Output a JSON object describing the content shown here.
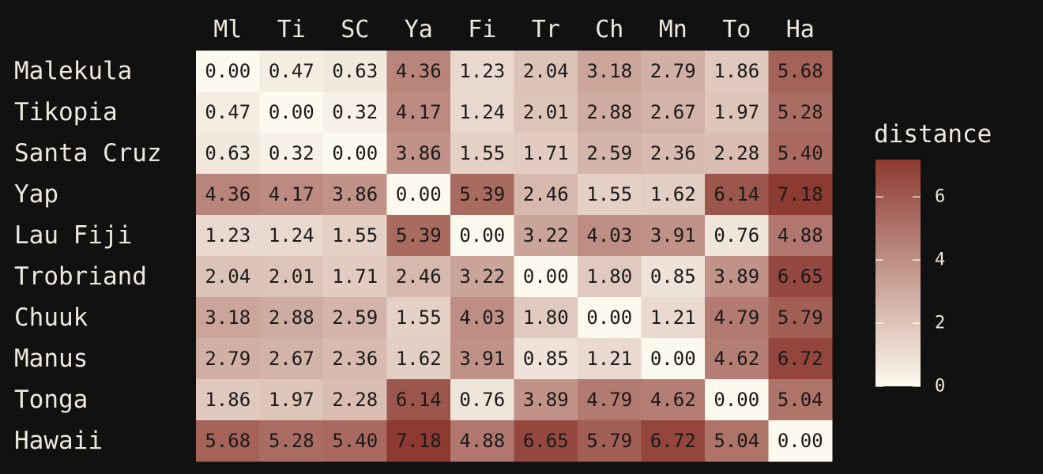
{
  "chart_data": {
    "type": "heatmap",
    "columns": [
      "Ml",
      "Ti",
      "SC",
      "Ya",
      "Fi",
      "Tr",
      "Ch",
      "Mn",
      "To",
      "Ha"
    ],
    "rows": [
      "Malekula",
      "Tikopia",
      "Santa Cruz",
      "Yap",
      "Lau Fiji",
      "Trobriand",
      "Chuuk",
      "Manus",
      "Tonga",
      "Hawaii"
    ],
    "values": [
      [
        0.0,
        0.47,
        0.63,
        4.36,
        1.23,
        2.04,
        3.18,
        2.79,
        1.86,
        5.68
      ],
      [
        0.47,
        0.0,
        0.32,
        4.17,
        1.24,
        2.01,
        2.88,
        2.67,
        1.97,
        5.28
      ],
      [
        0.63,
        0.32,
        0.0,
        3.86,
        1.55,
        1.71,
        2.59,
        2.36,
        2.28,
        5.4
      ],
      [
        4.36,
        4.17,
        3.86,
        0.0,
        5.39,
        2.46,
        1.55,
        1.62,
        6.14,
        7.18
      ],
      [
        1.23,
        1.24,
        1.55,
        5.39,
        0.0,
        3.22,
        4.03,
        3.91,
        0.76,
        4.88
      ],
      [
        2.04,
        2.01,
        1.71,
        2.46,
        3.22,
        0.0,
        1.8,
        0.85,
        3.89,
        6.65
      ],
      [
        3.18,
        2.88,
        2.59,
        1.55,
        4.03,
        1.8,
        0.0,
        1.21,
        4.79,
        5.79
      ],
      [
        2.79,
        2.67,
        2.36,
        1.62,
        3.91,
        0.85,
        1.21,
        0.0,
        4.62,
        6.72
      ],
      [
        1.86,
        1.97,
        2.28,
        6.14,
        0.76,
        3.89,
        4.79,
        4.62,
        0.0,
        5.04
      ],
      [
        5.68,
        5.28,
        5.4,
        7.18,
        4.88,
        6.65,
        5.79,
        6.72,
        5.04,
        0.0
      ]
    ],
    "cell_labels": [
      [
        "0.00",
        "0.47",
        "0.63",
        "4.36",
        "1.23",
        "2.04",
        "3.18",
        "2.79",
        "1.86",
        "5.68"
      ],
      [
        "0.47",
        "0.00",
        "0.32",
        "4.17",
        "1.24",
        "2.01",
        "2.88",
        "2.67",
        "1.97",
        "5.28"
      ],
      [
        "0.63",
        "0.32",
        "0.00",
        "3.86",
        "1.55",
        "1.71",
        "2.59",
        "2.36",
        "2.28",
        "5.40"
      ],
      [
        "4.36",
        "4.17",
        "3.86",
        "0.00",
        "5.39",
        "2.46",
        "1.55",
        "1.62",
        "6.14",
        "7.18"
      ],
      [
        "1.23",
        "1.24",
        "1.55",
        "5.39",
        "0.00",
        "3.22",
        "4.03",
        "3.91",
        "0.76",
        "4.88"
      ],
      [
        "2.04",
        "2.01",
        "1.71",
        "2.46",
        "3.22",
        "0.00",
        "1.80",
        "0.85",
        "3.89",
        "6.65"
      ],
      [
        "3.18",
        "2.88",
        "2.59",
        "1.55",
        "4.03",
        "1.80",
        "0.00",
        "1.21",
        "4.79",
        "5.79"
      ],
      [
        "2.79",
        "2.67",
        "2.36",
        "1.62",
        "3.91",
        "0.85",
        "1.21",
        "0.00",
        "4.62",
        "6.72"
      ],
      [
        "1.86",
        "1.97",
        "2.28",
        "6.14",
        "0.76",
        "3.89",
        "4.79",
        "4.62",
        "0.00",
        "5.04"
      ],
      [
        "5.68",
        "5.28",
        "5.40",
        "7.18",
        "4.88",
        "6.65",
        "5.79",
        "6.72",
        "5.04",
        "0.00"
      ]
    ],
    "legend": {
      "title": "distance",
      "placement": "right",
      "range": [
        0,
        7.18
      ],
      "ticks": [
        0,
        2,
        4,
        6
      ],
      "tick_labels": [
        "0",
        "2",
        "4",
        "6"
      ]
    },
    "colors": {
      "low": "#fcf9ee",
      "high": "#8d3a31",
      "background": "#111112",
      "text_light": "#fcf9ee",
      "text_dark": "#1a1a1a"
    }
  }
}
